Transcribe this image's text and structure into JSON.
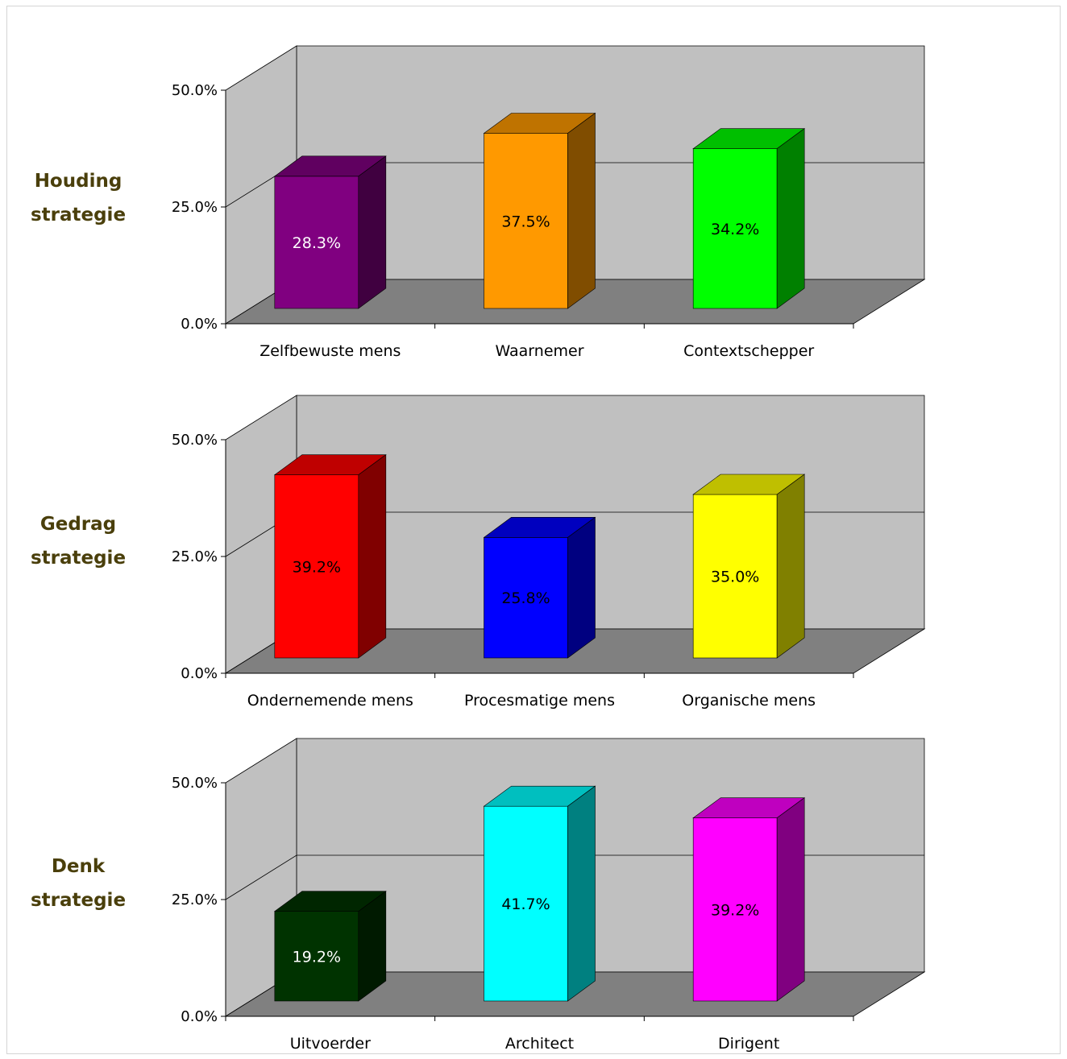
{
  "chart_data": [
    {
      "type": "bar",
      "title": "Houding strategie",
      "title_lines": [
        "Houding",
        "strategie"
      ],
      "categories": [
        "Zelfbewuste mens",
        "Waarnemer",
        "Contextschepper"
      ],
      "values": [
        28.3,
        37.5,
        34.2
      ],
      "value_labels": [
        "28.3%",
        "37.5%",
        "34.2%"
      ],
      "yticks": [
        "0.0%",
        "25.0%",
        "50.0%"
      ],
      "ylim": [
        0,
        50
      ],
      "grid": true,
      "colors": [
        "#800080",
        "#FF9900",
        "#00FF00"
      ],
      "label_colors": [
        "#ffffff",
        "#000000",
        "#000000"
      ]
    },
    {
      "type": "bar",
      "title": "Gedrag strategie",
      "title_lines": [
        "Gedrag",
        "strategie"
      ],
      "categories": [
        "Ondernemende mens",
        "Procesmatige mens",
        "Organische mens"
      ],
      "values": [
        39.2,
        25.8,
        35.0
      ],
      "value_labels": [
        "39.2%",
        "25.8%",
        "35.0%"
      ],
      "yticks": [
        "0.0%",
        "25.0%",
        "50.0%"
      ],
      "ylim": [
        0,
        50
      ],
      "grid": true,
      "colors": [
        "#FF0000",
        "#0000FF",
        "#FFFF00"
      ],
      "label_colors": [
        "#000000",
        "#000000",
        "#000000"
      ]
    },
    {
      "type": "bar",
      "title": "Denk strategie",
      "title_lines": [
        "Denk",
        "strategie"
      ],
      "categories": [
        "Uitvoerder",
        "Architect",
        "Dirigent"
      ],
      "values": [
        19.2,
        41.7,
        39.2
      ],
      "value_labels": [
        "19.2%",
        "41.7%",
        "39.2%"
      ],
      "yticks": [
        "0.0%",
        "25.0%",
        "50.0%"
      ],
      "ylim": [
        0,
        50
      ],
      "grid": true,
      "colors": [
        "#003300",
        "#00FFFF",
        "#FF00FF"
      ],
      "label_colors": [
        "#ffffff",
        "#000000",
        "#000000"
      ]
    }
  ]
}
